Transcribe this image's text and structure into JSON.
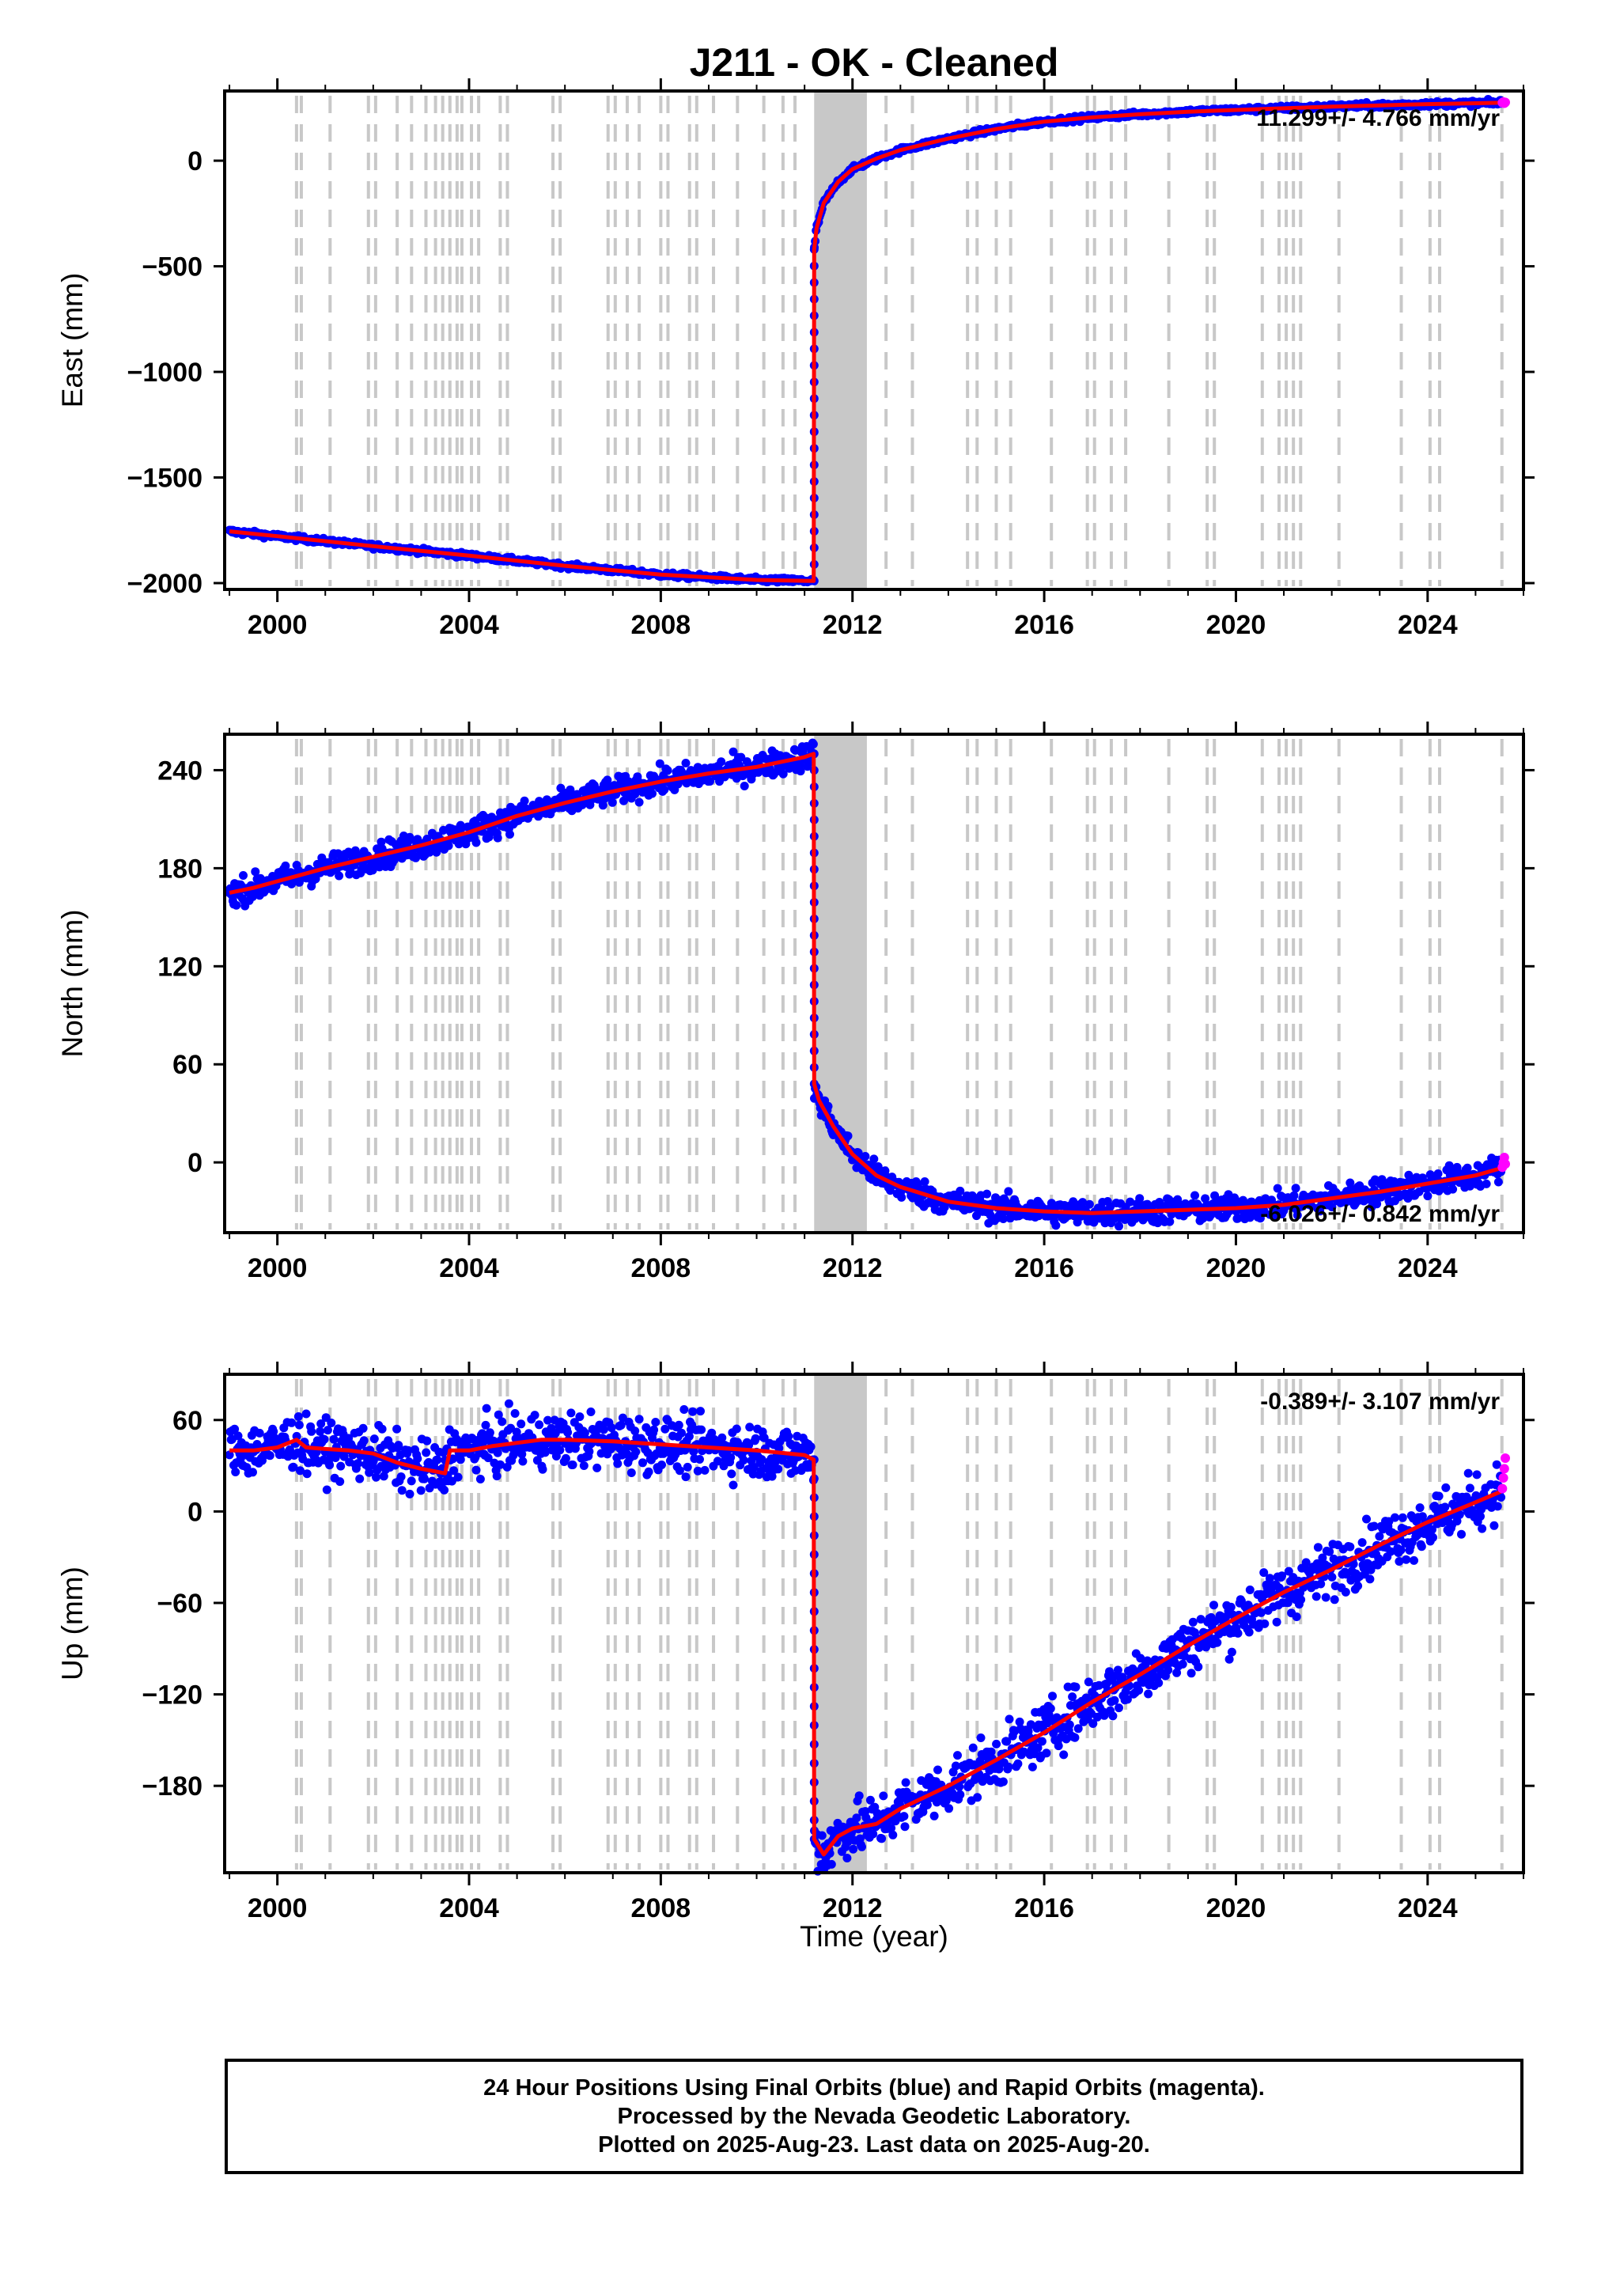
{
  "title": "J211  - OK - Cleaned",
  "colors": {
    "final_orbits": "#0000ff",
    "rapid_orbits": "#ff00ff",
    "model": "#ff0000",
    "event_lines": "#c8c8c8",
    "frame": "#000000"
  },
  "x_axis": {
    "label": "Time (year)",
    "range": [
      1998.9,
      2026.0
    ],
    "ticks": [
      2000,
      2004,
      2008,
      2012,
      2016,
      2020,
      2024
    ],
    "tick_labels": [
      "2000",
      "2004",
      "2008",
      "2012",
      "2016",
      "2020",
      "2024"
    ]
  },
  "event_lines": [
    2000.4,
    2000.5,
    2001.1,
    2001.9,
    2002.05,
    2002.5,
    2002.8,
    2003.1,
    2003.3,
    2003.45,
    2003.6,
    2003.75,
    2003.85,
    2004.05,
    2004.2,
    2004.65,
    2004.8,
    2005.75,
    2005.9,
    2006.9,
    2007.05,
    2007.3,
    2007.55,
    2008.0,
    2008.15,
    2008.6,
    2008.75,
    2009.1,
    2009.6,
    2010.15,
    2010.55,
    2010.8,
    2012.7,
    2013.25,
    2014.4,
    2014.6,
    2015.0,
    2015.3,
    2016.15,
    2016.9,
    2017.05,
    2017.4,
    2017.7,
    2018.6,
    2019.4,
    2019.55,
    2020.55,
    2020.9,
    2021.05,
    2021.2,
    2021.35,
    2022.15,
    2023.45,
    2024.05,
    2024.25,
    2025.55
  ],
  "dense_event_band": [
    2011.2,
    2012.3
  ],
  "caption": {
    "line1": "24 Hour Positions Using Final Orbits (blue) and Rapid Orbits (magenta).",
    "line2": "Processed by the Nevada Geodetic Laboratory.",
    "line3": "Plotted on 2025-Aug-23. Last data on 2025-Aug-20."
  },
  "chart_data": [
    {
      "type": "scatter",
      "component": "East",
      "ylabel": "East (mm)",
      "ylim": [
        -2030,
        330
      ],
      "yticks": [
        0,
        -500,
        -1000,
        -1500,
        -2000
      ],
      "ytick_labels": [
        "0",
        "−500",
        "−1000",
        "−1500",
        "−2000"
      ],
      "rate_label": "11.299+/- 4.766 mm/yr",
      "rate_label_position": "top-right",
      "noise_mm": 6,
      "model": {
        "name": "Model",
        "x": [
          1999.0,
          2000.0,
          2002.0,
          2004.0,
          2006.0,
          2008.0,
          2010.0,
          2011.19,
          2011.2,
          2011.25,
          2011.4,
          2011.7,
          2012.0,
          2012.5,
          2013.0,
          2014.0,
          2015.0,
          2016.0,
          2017.0,
          2018.0,
          2019.0,
          2020.0,
          2021.0,
          2022.0,
          2023.0,
          2024.0,
          2025.0,
          2025.6
        ],
        "y": [
          -1755,
          -1778,
          -1825,
          -1870,
          -1918,
          -1960,
          -1985,
          -1990,
          -420,
          -320,
          -200,
          -100,
          -40,
          10,
          50,
          105,
          150,
          185,
          205,
          220,
          232,
          240,
          248,
          256,
          262,
          268,
          272,
          275
        ]
      },
      "final_orbits": {
        "name": "Final Orbits",
        "x": [
          1999.0,
          2000.0,
          2002.0,
          2004.0,
          2006.0,
          2008.0,
          2010.0,
          2011.19,
          2011.2,
          2011.25,
          2011.4,
          2011.7,
          2012.0,
          2012.5,
          2013.0,
          2014.0,
          2015.0,
          2016.0,
          2017.0,
          2018.0,
          2019.0,
          2020.0,
          2021.0,
          2022.0,
          2023.0,
          2024.0,
          2025.0,
          2025.55
        ],
        "y": [
          -1755,
          -1778,
          -1825,
          -1870,
          -1918,
          -1960,
          -1985,
          -1990,
          -420,
          -320,
          -200,
          -100,
          -40,
          10,
          50,
          105,
          150,
          185,
          205,
          220,
          232,
          240,
          248,
          256,
          262,
          268,
          272,
          275
        ]
      },
      "rapid_orbits": {
        "name": "Rapid Orbits",
        "x": [
          2025.56,
          2025.58,
          2025.6,
          2025.62
        ],
        "y": [
          275,
          278,
          272,
          276
        ]
      }
    },
    {
      "type": "scatter",
      "component": "North",
      "ylabel": "North (mm)",
      "ylim": [
        -43,
        262
      ],
      "yticks": [
        240,
        180,
        120,
        60,
        0
      ],
      "ytick_labels": [
        "240",
        "180",
        "120",
        "60",
        "0"
      ],
      "rate_label": "-6.026+/- 0.842 mm/yr",
      "rate_label_position": "bottom-right",
      "noise_mm": 4,
      "model": {
        "name": "Model",
        "x": [
          1999.0,
          1999.5,
          2000.0,
          2001.0,
          2002.0,
          2003.0,
          2004.0,
          2005.0,
          2006.0,
          2007.0,
          2008.0,
          2009.0,
          2010.0,
          2011.0,
          2011.19,
          2011.2,
          2011.3,
          2011.6,
          2012.0,
          2012.5,
          2013.0,
          2014.0,
          2015.0,
          2016.0,
          2017.0,
          2018.0,
          2019.0,
          2020.0,
          2021.0,
          2022.0,
          2023.0,
          2024.0,
          2025.0,
          2025.6
        ],
        "y": [
          165,
          168,
          172,
          180,
          187,
          194,
          202,
          212,
          220,
          227,
          233,
          238,
          242,
          248,
          250,
          48,
          38,
          22,
          5,
          -8,
          -15,
          -24,
          -28,
          -30,
          -31,
          -30,
          -29,
          -28,
          -26,
          -22,
          -18,
          -13,
          -8,
          -3
        ]
      },
      "final_orbits": {
        "name": "Final Orbits",
        "x": [
          1999.0,
          1999.5,
          2000.0,
          2001.0,
          2002.0,
          2003.0,
          2004.0,
          2005.0,
          2006.0,
          2007.0,
          2008.0,
          2009.0,
          2010.0,
          2011.0,
          2011.19,
          2011.2,
          2011.3,
          2011.6,
          2012.0,
          2012.5,
          2013.0,
          2014.0,
          2015.0,
          2016.0,
          2017.0,
          2018.0,
          2019.0,
          2020.0,
          2021.0,
          2022.0,
          2023.0,
          2024.0,
          2025.0,
          2025.55
        ],
        "y": [
          165,
          168,
          172,
          180,
          187,
          194,
          202,
          212,
          220,
          227,
          233,
          238,
          242,
          248,
          250,
          48,
          38,
          22,
          5,
          -8,
          -15,
          -24,
          -28,
          -30,
          -31,
          -30,
          -29,
          -28,
          -26,
          -22,
          -18,
          -13,
          -8,
          -3
        ]
      },
      "rapid_orbits": {
        "name": "Rapid Orbits",
        "x": [
          2025.56,
          2025.58,
          2025.6,
          2025.62
        ],
        "y": [
          -3,
          0,
          3,
          -1
        ]
      }
    },
    {
      "type": "scatter",
      "component": "Up",
      "ylabel": "Up (mm)",
      "ylim": [
        -237,
        90
      ],
      "yticks": [
        60,
        0,
        -60,
        -120,
        -180
      ],
      "ytick_labels": [
        "60",
        "0",
        "−60",
        "−120",
        "−180"
      ],
      "rate_label": "-0.389+/- 3.107 mm/yr",
      "rate_label_position": "top-right",
      "noise_mm": 9,
      "model": {
        "name": "Model",
        "x": [
          1999.0,
          1999.5,
          2000.0,
          2000.4,
          2000.6,
          2001.0,
          2001.5,
          2002.0,
          2002.5,
          2003.0,
          2003.5,
          2003.6,
          2004.0,
          2004.5,
          2005.0,
          2005.5,
          2006.0,
          2007.0,
          2008.0,
          2009.0,
          2010.0,
          2011.0,
          2011.19,
          2011.2,
          2011.4,
          2011.7,
          2012.0,
          2012.5,
          2013.0,
          2014.0,
          2015.0,
          2016.0,
          2017.0,
          2018.0,
          2019.0,
          2020.0,
          2021.0,
          2022.0,
          2023.0,
          2024.0,
          2025.0,
          2025.6
        ],
        "y": [
          40,
          40,
          42,
          47,
          42,
          41,
          40,
          38,
          32,
          28,
          25,
          40,
          40,
          43,
          45,
          47,
          47,
          46,
          44,
          42,
          40,
          37,
          34,
          -215,
          -225,
          -213,
          -208,
          -205,
          -195,
          -180,
          -163,
          -145,
          -125,
          -107,
          -88,
          -70,
          -53,
          -38,
          -22,
          -7,
          6,
          14
        ]
      },
      "final_orbits": {
        "name": "Final Orbits",
        "x": [
          1999.0,
          1999.5,
          2000.0,
          2000.4,
          2000.6,
          2001.0,
          2001.5,
          2002.0,
          2002.5,
          2003.0,
          2003.5,
          2003.6,
          2004.0,
          2004.5,
          2005.0,
          2005.5,
          2006.0,
          2007.0,
          2008.0,
          2009.0,
          2010.0,
          2011.0,
          2011.19,
          2011.2,
          2011.4,
          2011.7,
          2012.0,
          2012.5,
          2013.0,
          2014.0,
          2015.0,
          2016.0,
          2017.0,
          2018.0,
          2019.0,
          2020.0,
          2021.0,
          2022.0,
          2023.0,
          2024.0,
          2025.0,
          2025.55
        ],
        "y": [
          40,
          40,
          42,
          47,
          42,
          41,
          40,
          38,
          32,
          28,
          25,
          40,
          40,
          43,
          45,
          47,
          47,
          46,
          44,
          42,
          40,
          37,
          34,
          -215,
          -225,
          -213,
          -208,
          -205,
          -195,
          -180,
          -163,
          -145,
          -125,
          -107,
          -88,
          -70,
          -53,
          -38,
          -22,
          -7,
          6,
          14
        ]
      },
      "rapid_orbits": {
        "name": "Rapid Orbits",
        "x": [
          2025.56,
          2025.58,
          2025.6,
          2025.62
        ],
        "y": [
          15,
          22,
          28,
          35
        ]
      }
    }
  ]
}
